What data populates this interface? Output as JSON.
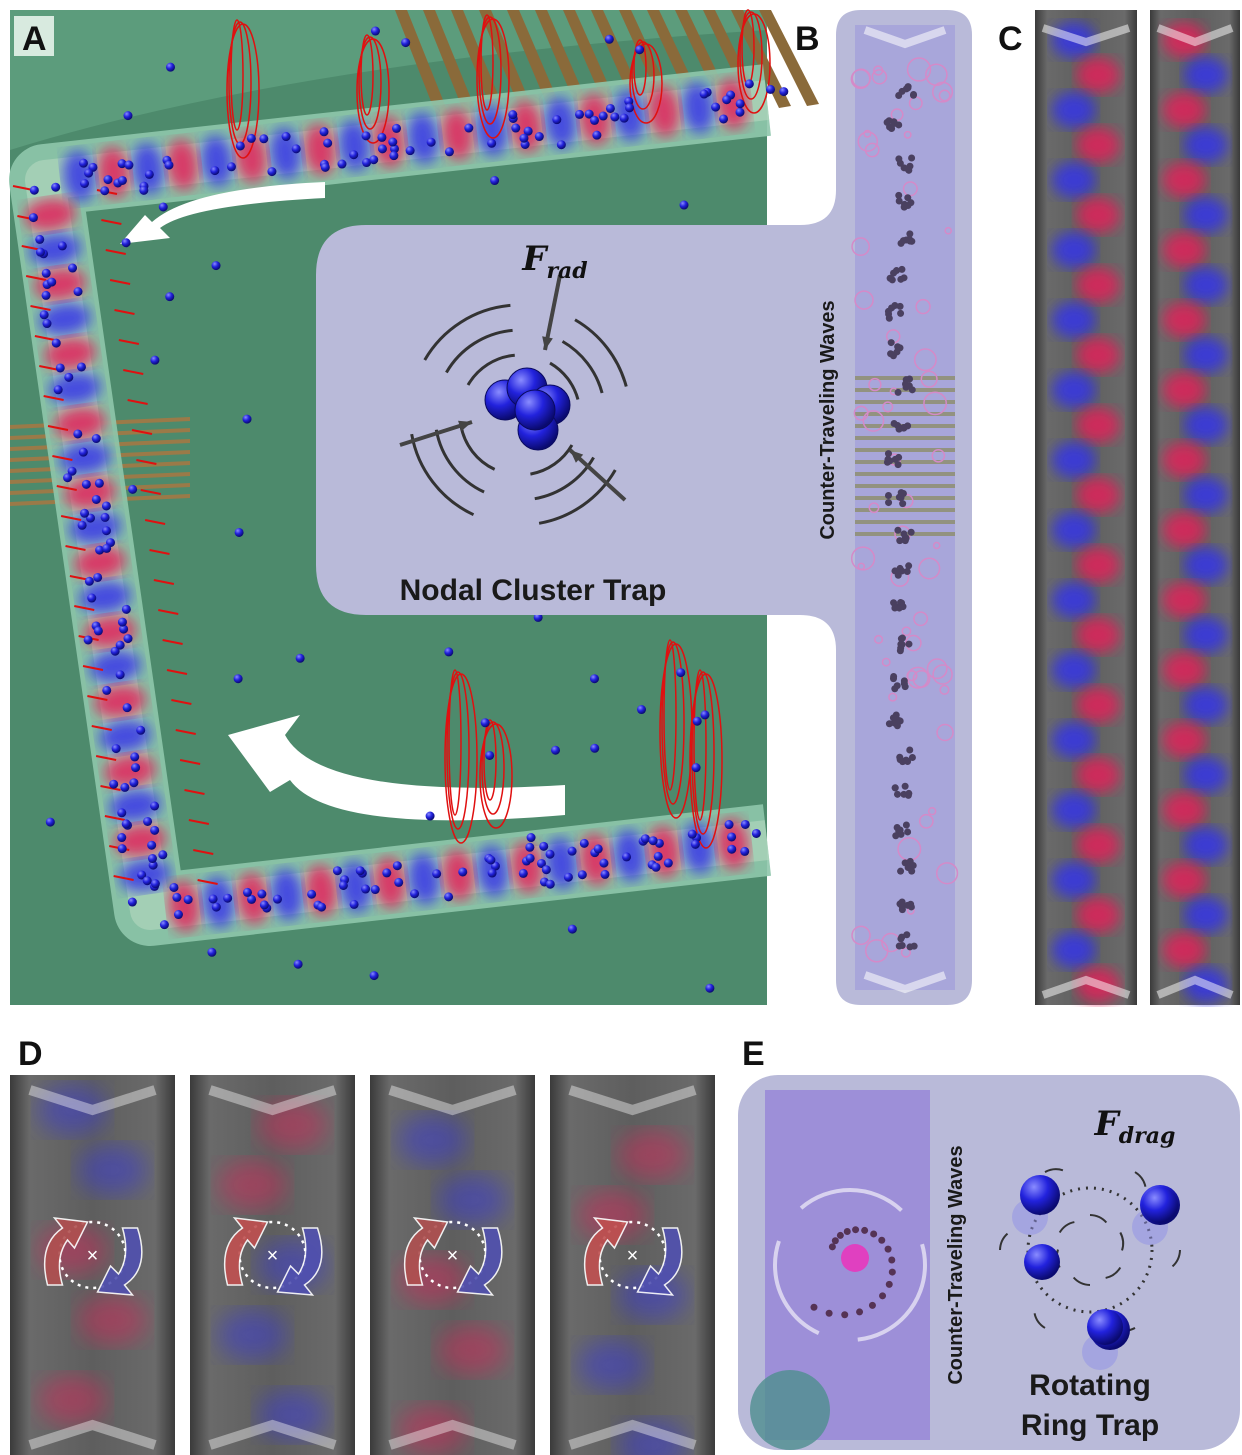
{
  "panel_labels": [
    "A",
    "B",
    "C",
    "D",
    "E"
  ],
  "nodal_trap": {
    "force": {
      "symbol": "F",
      "subscript": "rad"
    },
    "caption": "Nodal Cluster Trap"
  },
  "panel_b": {
    "side_label": "Counter-Traveling Waves"
  },
  "panel_e": {
    "side_label": "Counter-Traveling Waves",
    "force": {
      "symbol": "F",
      "subscript": "drag"
    },
    "caption": [
      "Rotating",
      "Ring Trap"
    ]
  }
}
